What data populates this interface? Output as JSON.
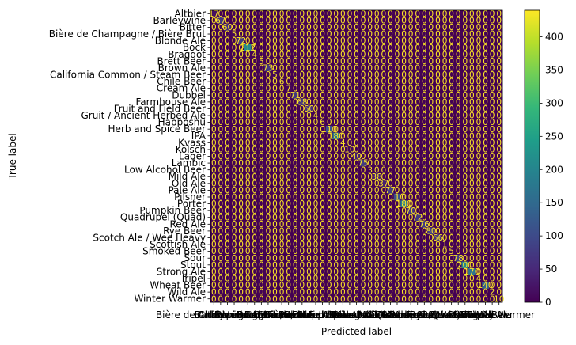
{
  "chart_data": {
    "type": "heatmap",
    "xlabel": "Predicted label",
    "ylabel": "True label",
    "labels": [
      "Altbier",
      "Barleywine",
      "Bitter",
      "Bière de Champagne / Bière Brut",
      "Blonde Ale",
      "Bock",
      "Braggot",
      "Brett Beer",
      "Brown Ale",
      "California Common / Steam Beer",
      "Chile Beer",
      "Cream Ale",
      "Dubbel",
      "Farmhouse Ale",
      "Fruit and Field Beer",
      "Gruit / Ancient Herbed Ale",
      "Happoshu",
      "Herb and Spice Beer",
      "IPA",
      "Kvass",
      "Kölsch",
      "Lager",
      "Lambic",
      "Low Alcohol Beer",
      "Mild Ale",
      "Old Ale",
      "Pale Ale",
      "Pilsner",
      "Porter",
      "Pumpkin Beer",
      "Quadrupel (Quad)",
      "Red Ale",
      "Rye Beer",
      "Scotch Ale / Wee Heavy",
      "Scottish Ale",
      "Smoked Beer",
      "Sour",
      "Stout",
      "Strong Ale",
      "Tripel",
      "Wheat Beer",
      "Wild Ale",
      "Winter Warmer"
    ],
    "diagonal": [
      17,
      67,
      60,
      5,
      72,
      212,
      4,
      5,
      73,
      5,
      6,
      7,
      71,
      68,
      60,
      4,
      6,
      110,
      180,
      4,
      10,
      40,
      75,
      3,
      38,
      37,
      77,
      110,
      180,
      70,
      72,
      76,
      80,
      66,
      1,
      5,
      78,
      200,
      170,
      4,
      140,
      2,
      10
    ],
    "off_diagonal_value": 0,
    "vmin": 0,
    "vmax": 440,
    "colorbar_ticks": [
      0,
      50,
      100,
      150,
      200,
      250,
      300,
      350,
      400
    ],
    "colormap": [
      "#440154",
      "#482878",
      "#3e4989",
      "#31688e",
      "#26828e",
      "#1f9e89",
      "#35b779",
      "#6ece58",
      "#b5de2b",
      "#fde725"
    ],
    "annotation_color": "#fde725",
    "annotation_color_high": "#440154"
  }
}
